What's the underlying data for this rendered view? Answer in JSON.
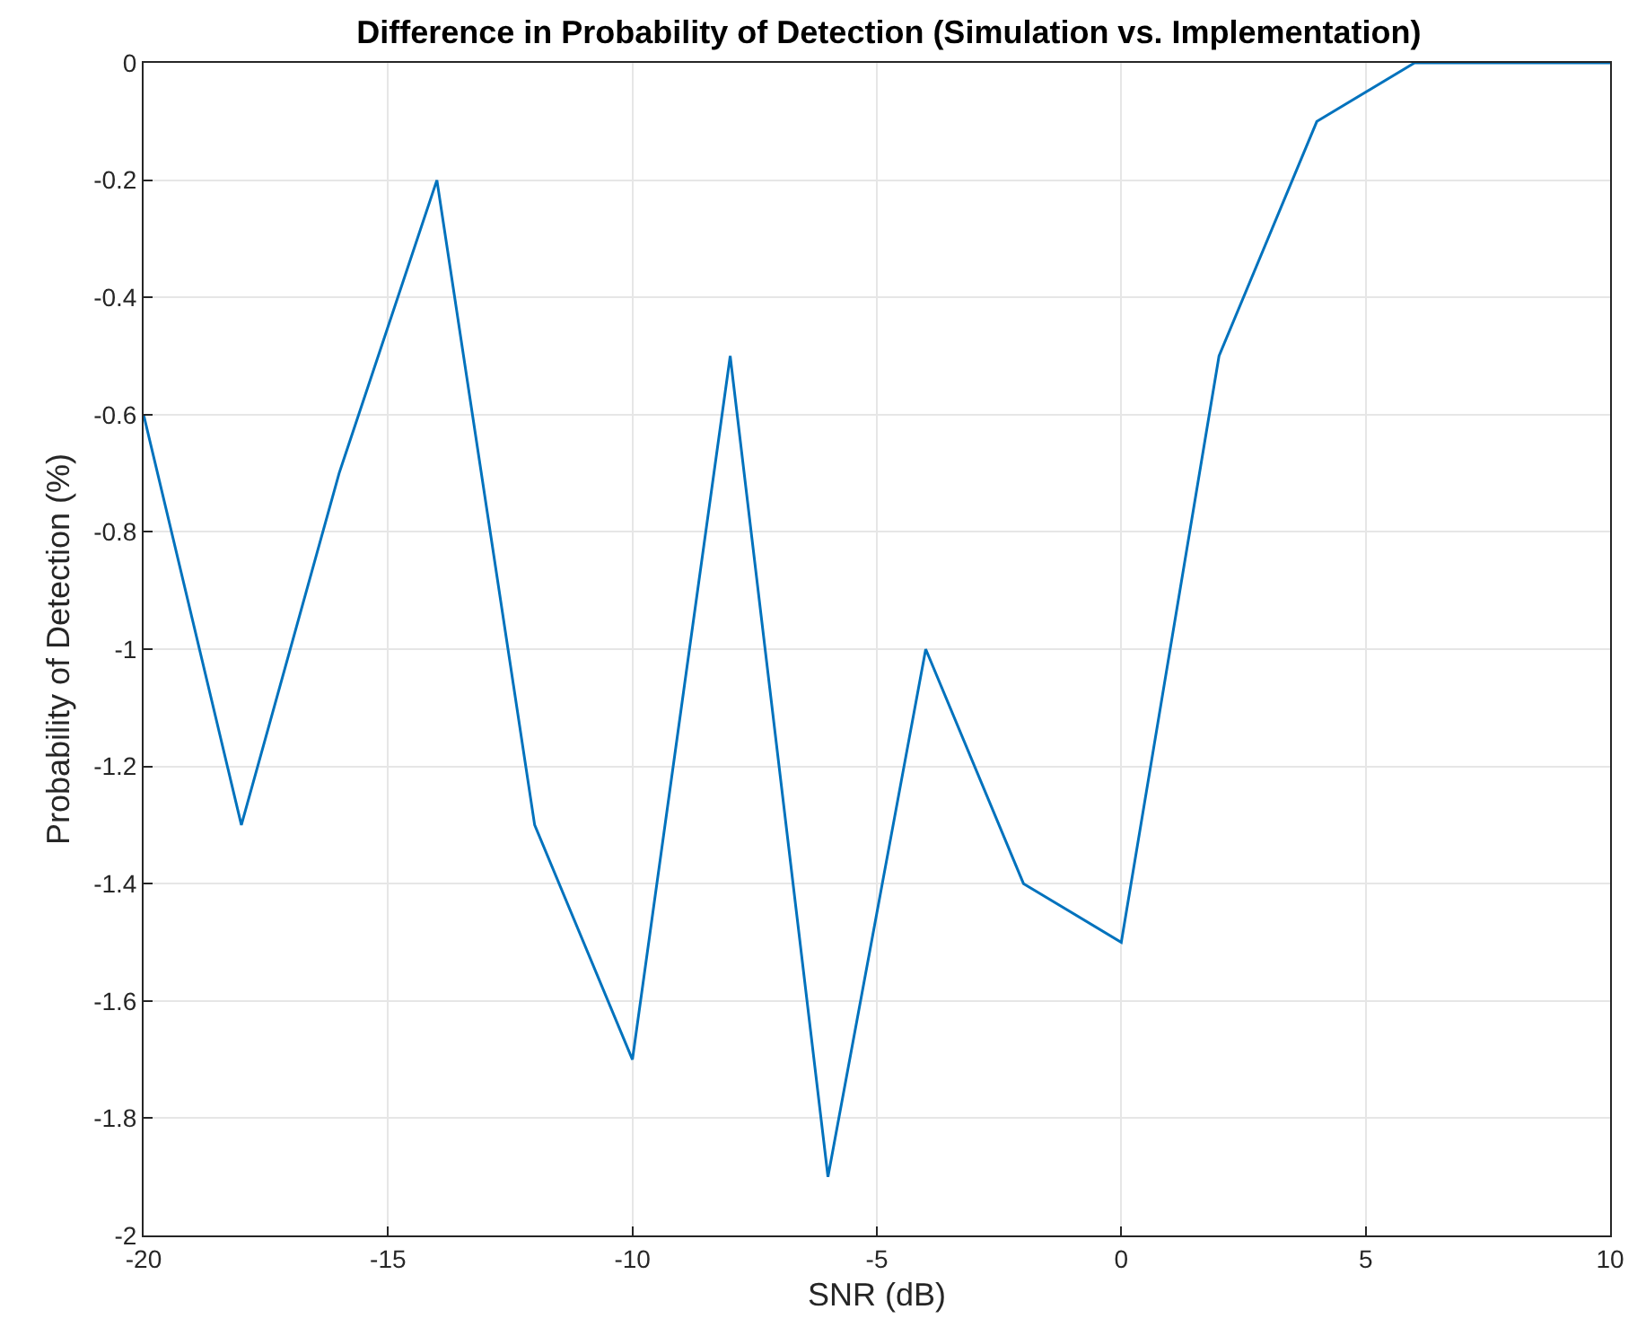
{
  "chart_data": {
    "type": "line",
    "title": "Difference in Probability of Detection (Simulation vs. Implementation)",
    "xlabel": "SNR (dB)",
    "ylabel": "Probability of Detection (%)",
    "x": [
      -20,
      -18,
      -16,
      -14,
      -12,
      -10,
      -8,
      -6,
      -4,
      -2,
      0,
      2,
      4,
      6,
      8,
      10
    ],
    "series": [
      {
        "color": "#0072bd",
        "values": [
          -0.6,
          -1.3,
          -0.7,
          -0.2,
          -1.3,
          -1.7,
          -0.5,
          -1.9,
          -1.0,
          -1.4,
          -1.5,
          -0.5,
          -0.1,
          0,
          0,
          0
        ]
      }
    ],
    "xlim": [
      -20,
      10
    ],
    "xticks": [
      -20,
      -15,
      -10,
      -5,
      0,
      5,
      10
    ],
    "ylim": [
      -2,
      0
    ],
    "yticks": [
      -2,
      -1.8,
      -1.6,
      -1.4,
      -1.2,
      -1,
      -0.8,
      -0.6,
      -0.4,
      -0.2,
      0
    ],
    "grid": true,
    "line_style": "solid"
  }
}
